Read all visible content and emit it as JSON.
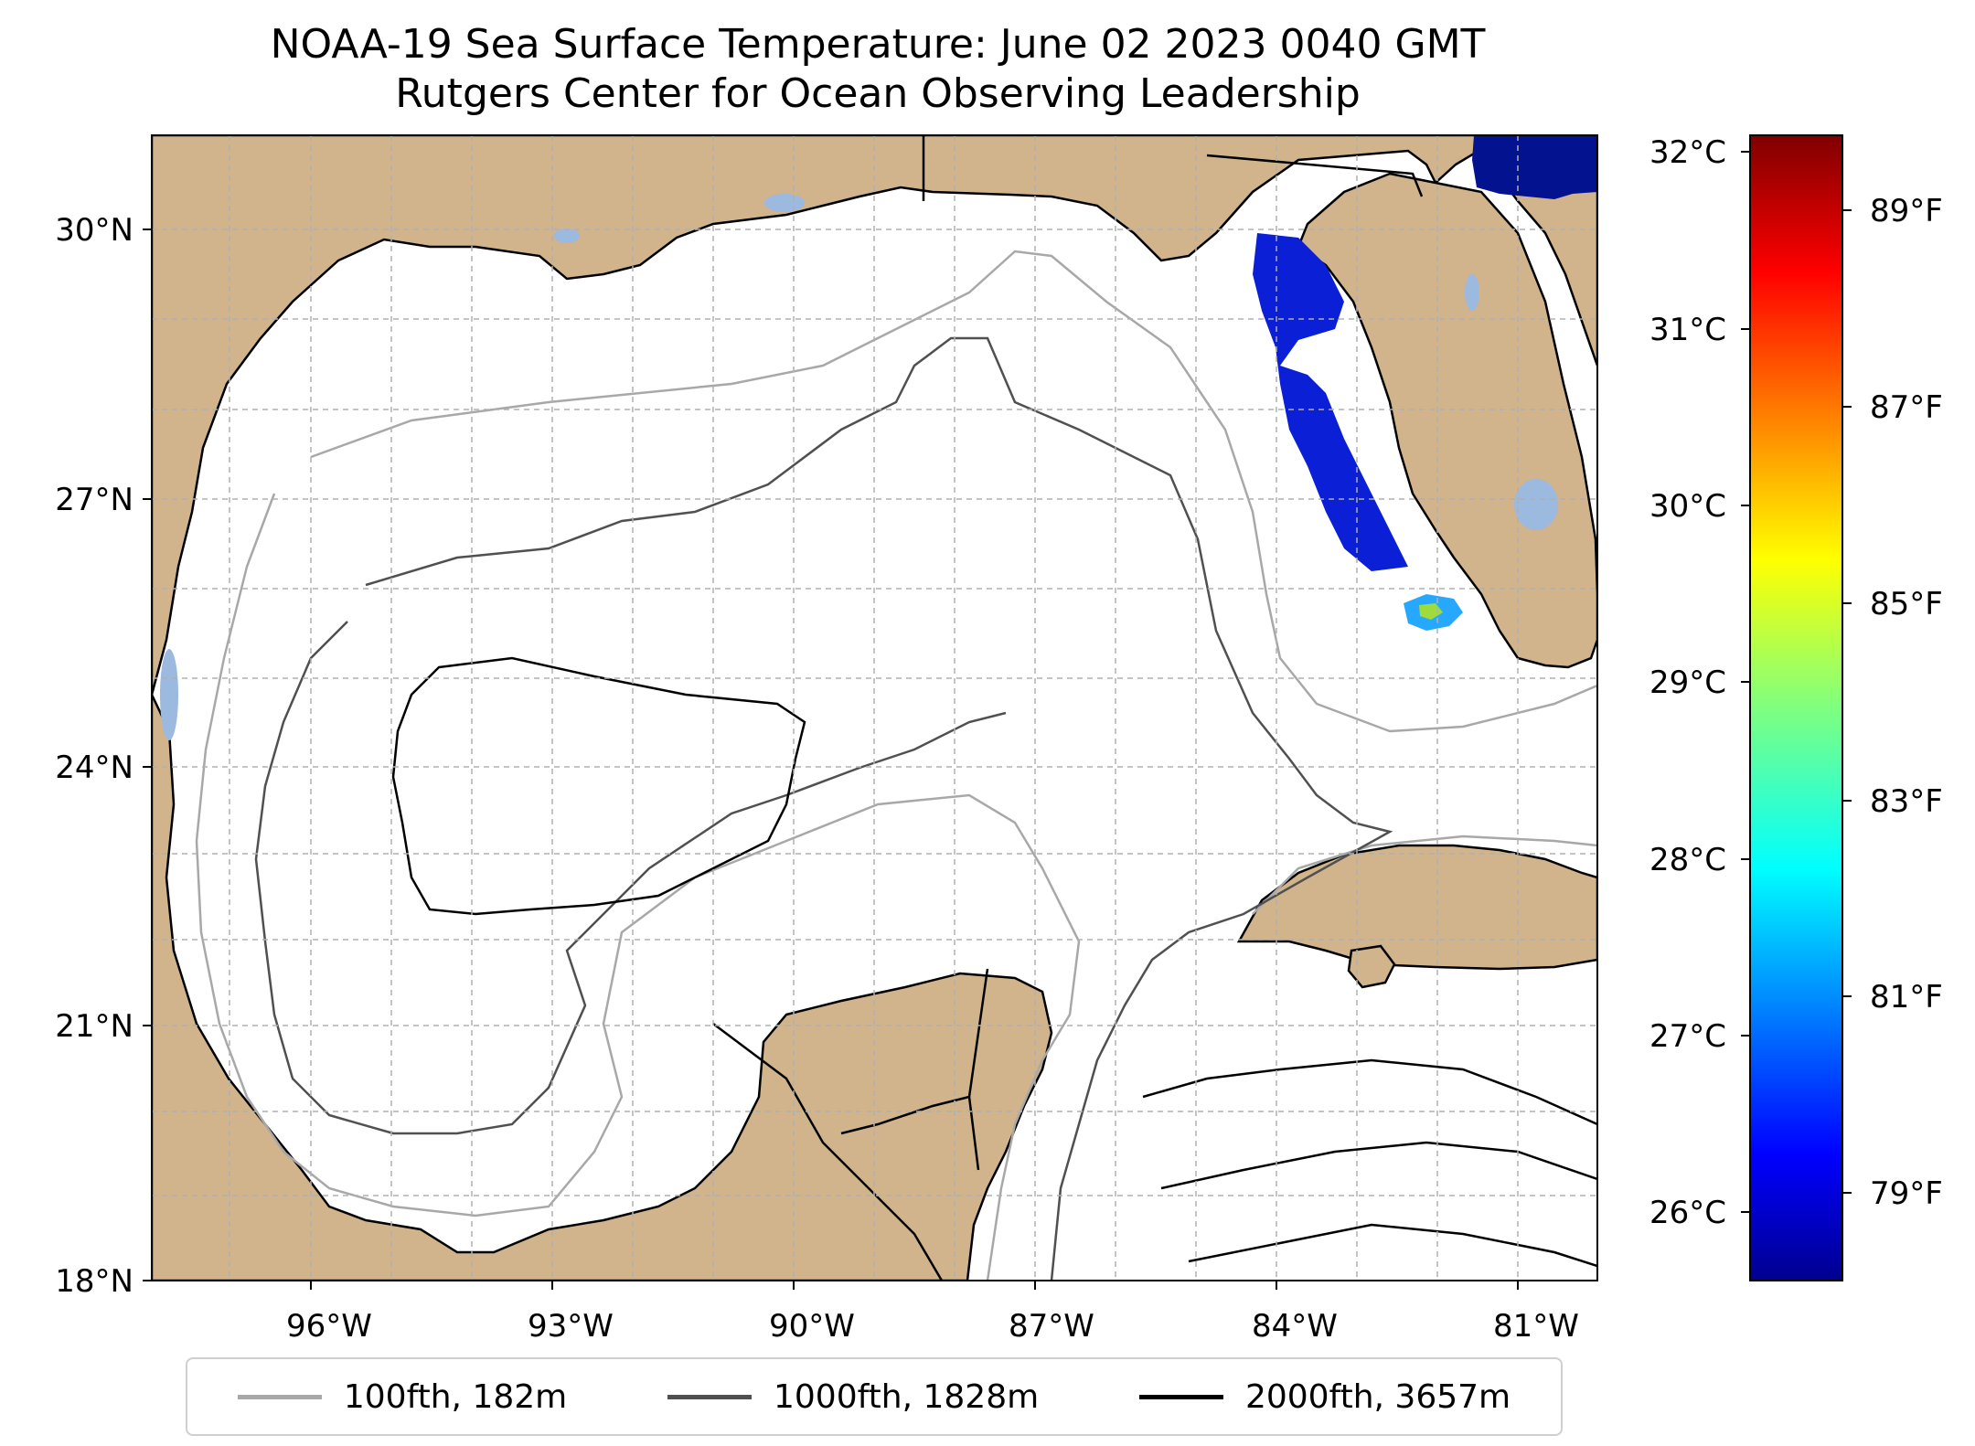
{
  "title": {
    "line1": "NOAA-19 Sea Surface Temperature: June 02 2023 0040 GMT",
    "line2": "Rutgers Center for Ocean Observing Leadership"
  },
  "map": {
    "lat_labels": [
      "30°N",
      "27°N",
      "24°N",
      "21°N",
      "18°N"
    ],
    "lon_labels": [
      "96°W",
      "93°W",
      "90°W",
      "87°W",
      "84°W",
      "81°W"
    ],
    "land_color": "#d2b48c",
    "lake_color": "#9cb9e0",
    "grid_style": "dashed"
  },
  "colorbar": {
    "colormap": "jet",
    "celsius_labels": [
      "32°C",
      "31°C",
      "30°C",
      "29°C",
      "28°C",
      "27°C",
      "26°C"
    ],
    "fahrenheit_labels": [
      "89°F",
      "87°F",
      "85°F",
      "83°F",
      "81°F",
      "79°F"
    ]
  },
  "legend": {
    "entries": [
      {
        "label": "100fth, 182m",
        "color": "#a8a8a8"
      },
      {
        "label": "1000fth, 1828m",
        "color": "#505050"
      },
      {
        "label": "2000fth, 3657m",
        "color": "#000000"
      }
    ]
  }
}
